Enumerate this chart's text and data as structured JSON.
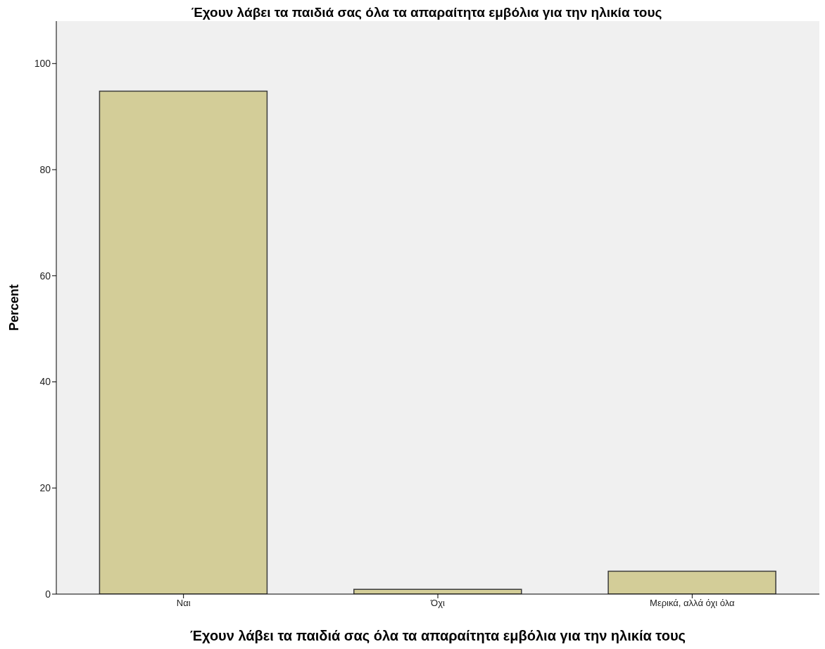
{
  "chart_data": {
    "type": "bar",
    "title": "Έχουν λάβει τα παιδιά σας όλα τα απαραίτητα εμβόλια για την ηλικία τους",
    "xlabel": "Έχουν λάβει τα παιδιά σας όλα τα απαραίτητα εμβόλια για την ηλικία τους",
    "ylabel": "Percent",
    "categories": [
      "Ναι",
      "Όχι",
      "Μερικά, αλλά όχι όλα"
    ],
    "values": [
      94.8,
      0.9,
      4.3
    ],
    "color": "#d3cd98",
    "ylim": [
      0,
      108
    ],
    "yticks": [
      0,
      20,
      40,
      60,
      80,
      100
    ],
    "grid": false,
    "legend": false
  }
}
